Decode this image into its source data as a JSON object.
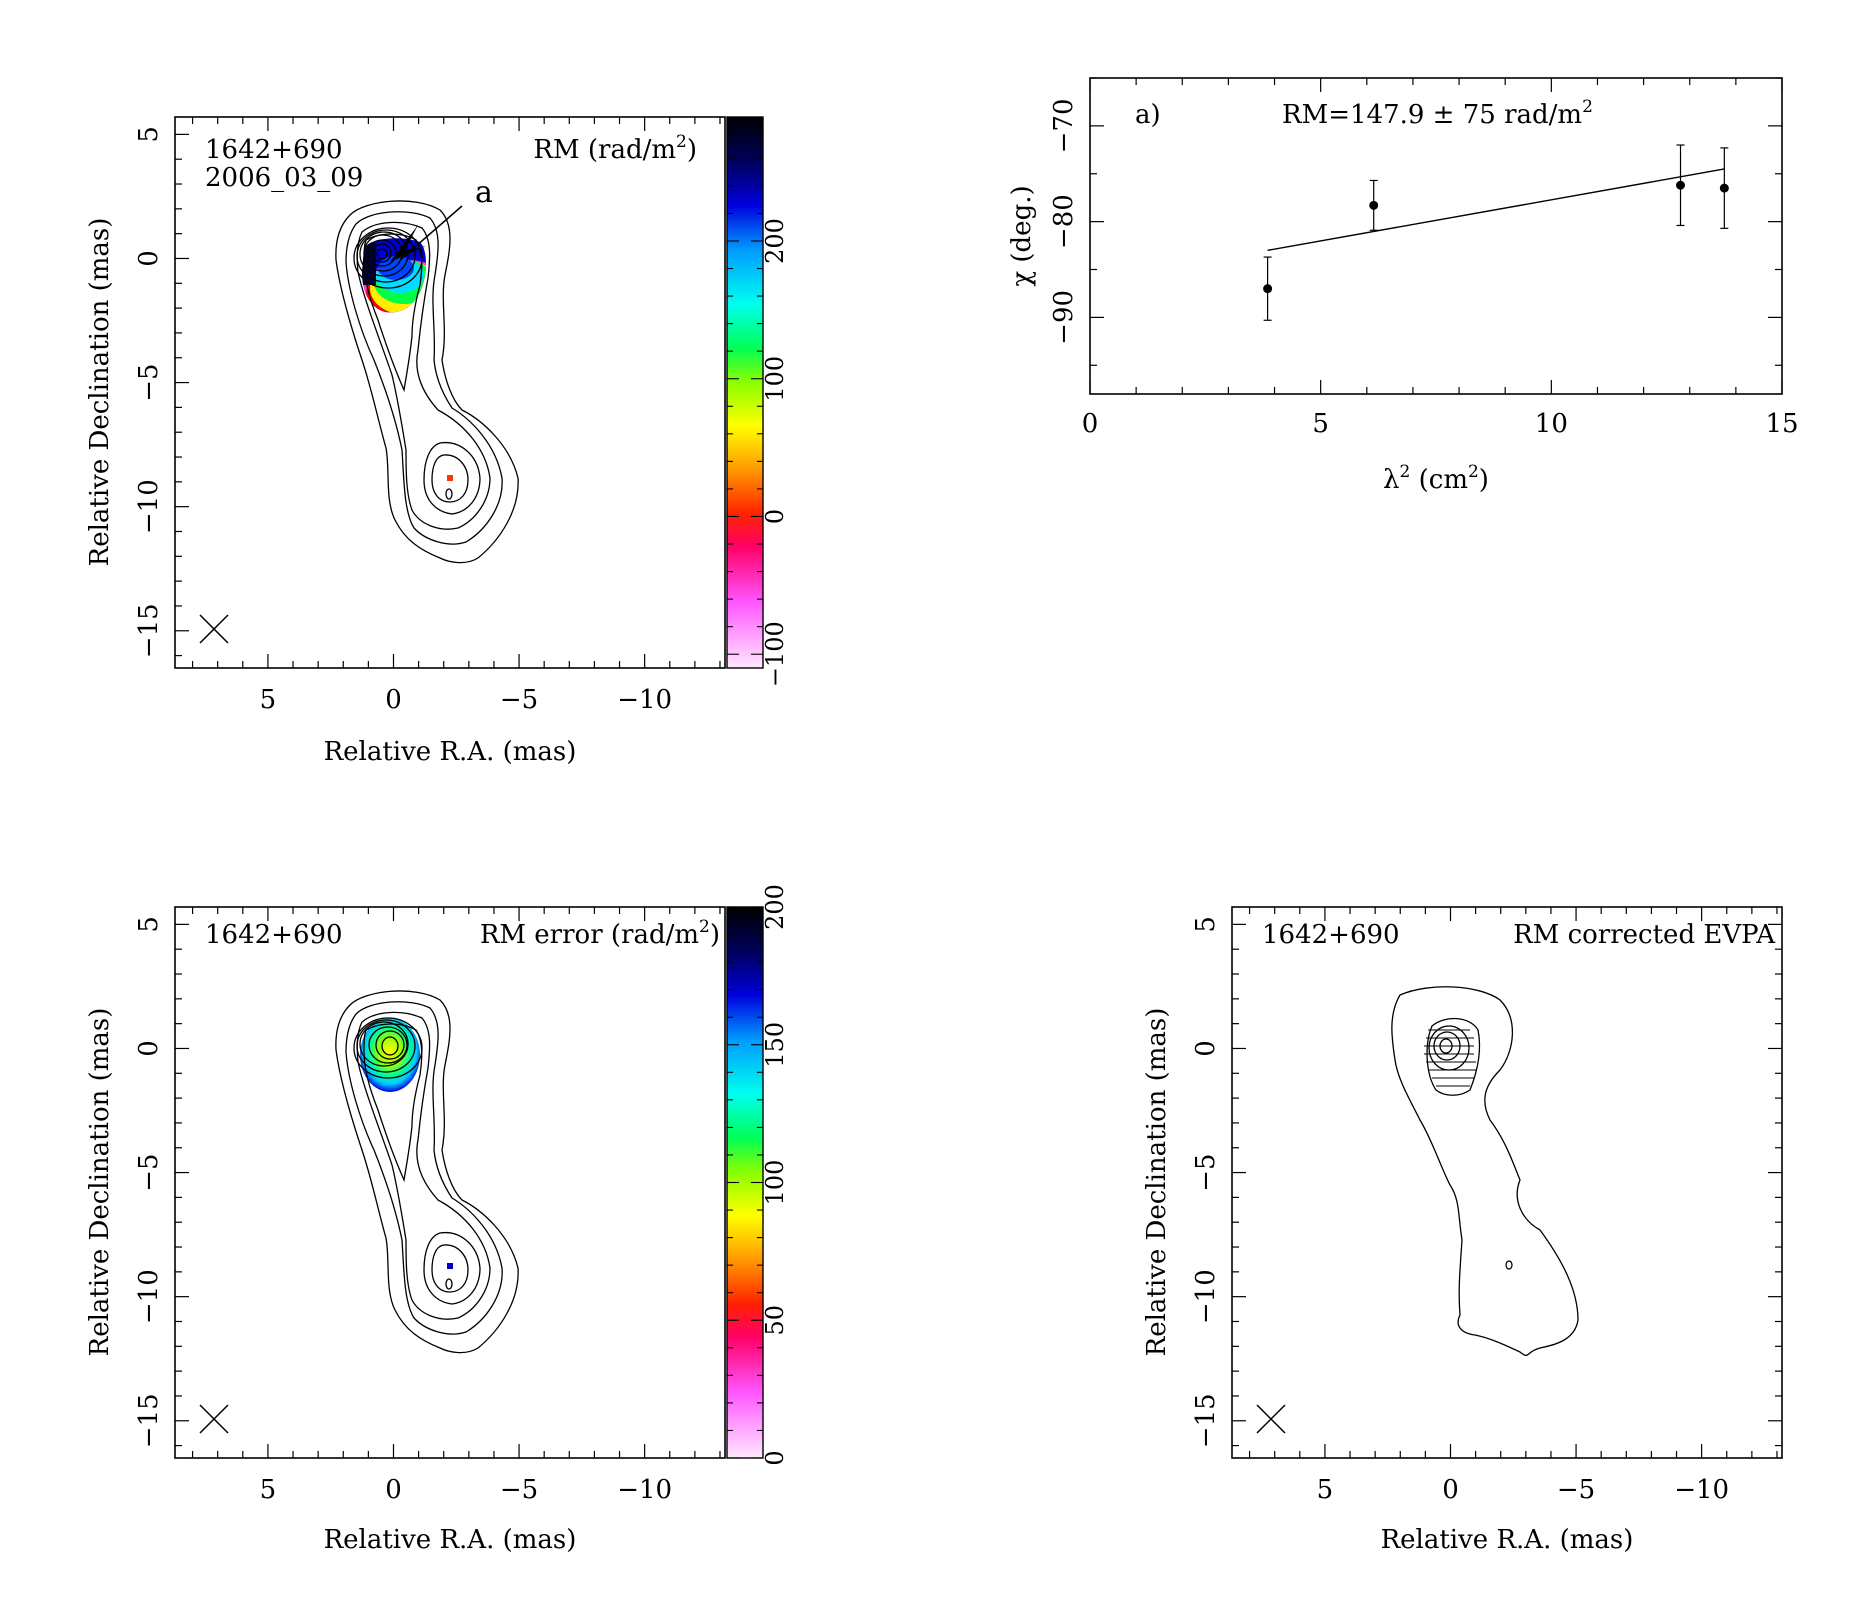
{
  "chart_data": [
    {
      "type": "heatmap",
      "id": "rm-map",
      "source_label": "1642+690",
      "epoch_label": "2006_03_09",
      "map_label": "RM (rad/m",
      "map_label_sup": "2",
      "map_label_close": ")",
      "annotation": "a",
      "xlabel": "Relative R.A. (mas)",
      "ylabel": "Relative Declination (mas)",
      "xlim": [
        8.7,
        -13.2
      ],
      "ylim": [
        -16.5,
        5.7
      ],
      "xticks": [
        5,
        0,
        -5,
        -10
      ],
      "xtick_labels": [
        "5",
        "0",
        "−5",
        "−10"
      ],
      "yticks": [
        5,
        0,
        -5,
        -10,
        -15
      ],
      "ytick_labels": [
        "5",
        "0",
        "−5",
        "−10",
        "−15"
      ],
      "colorbar": {
        "range": [
          -110,
          290
        ],
        "ticks": [
          -100,
          0,
          100,
          200
        ],
        "tick_labels": [
          "−100",
          "0",
          "100",
          "200"
        ]
      },
      "rm_region": {
        "center": [
          0.5,
          -0.6
        ],
        "value_range": [
          -100,
          290
        ]
      }
    },
    {
      "type": "scatter",
      "id": "rm-fit",
      "panel_label": "a)",
      "fit_label": "RM=147.9 ± 75 rad/m",
      "fit_label_sup": "2",
      "xlabel": "λ",
      "xlabel_sup": "2",
      "xlabel_rest": " (cm",
      "xlabel_sup2": "2",
      "xlabel_close": ")",
      "ylabel": "χ (deg.)",
      "xlim": [
        0,
        15
      ],
      "ylim": [
        -98,
        -65
      ],
      "xticks": [
        0,
        5,
        10,
        15
      ],
      "xtick_labels": [
        "0",
        "5",
        "10",
        "15"
      ],
      "yticks": [
        -70,
        -80,
        -90
      ],
      "ytick_labels": [
        "−70",
        "−80",
        "−90"
      ],
      "points": [
        {
          "x": 3.85,
          "y": -87.0,
          "err": 3.3
        },
        {
          "x": 6.15,
          "y": -78.3,
          "err": 2.6
        },
        {
          "x": 12.8,
          "y": -76.2,
          "err": 4.2
        },
        {
          "x": 13.75,
          "y": -76.5,
          "err": 4.2
        }
      ],
      "fit_line": {
        "x": [
          3.85,
          13.75
        ],
        "y": [
          -83.0,
          -74.5
        ]
      }
    },
    {
      "type": "heatmap",
      "id": "rm-error-map",
      "source_label": "1642+690",
      "map_label": "RM error (rad/m",
      "map_label_sup": "2",
      "map_label_close": ")",
      "xlabel": "Relative R.A. (mas)",
      "ylabel": "Relative Declination (mas)",
      "xlim": [
        8.7,
        -13.2
      ],
      "ylim": [
        -16.5,
        5.7
      ],
      "xticks": [
        5,
        0,
        -5,
        -10
      ],
      "xtick_labels": [
        "5",
        "0",
        "−5",
        "−10"
      ],
      "yticks": [
        5,
        0,
        -5,
        -10,
        -15
      ],
      "ytick_labels": [
        "5",
        "0",
        "−5",
        "−10",
        "−15"
      ],
      "colorbar": {
        "range": [
          0,
          200
        ],
        "ticks": [
          0,
          50,
          100,
          150,
          200
        ],
        "tick_labels": [
          "0",
          "50",
          "100",
          "150",
          "200"
        ]
      }
    },
    {
      "type": "heatmap",
      "id": "evpa-map",
      "source_label": "1642+690",
      "map_label": "RM corrected EVPA",
      "xlabel": "Relative R.A. (mas)",
      "ylabel": "Relative Declination (mas)",
      "xlim": [
        8.7,
        -13.2
      ],
      "ylim": [
        -16.5,
        5.7
      ],
      "xticks": [
        5,
        0,
        -5,
        -10
      ],
      "xtick_labels": [
        "5",
        "0",
        "−5",
        "−10"
      ],
      "yticks": [
        5,
        0,
        -5,
        -10,
        -15
      ],
      "ytick_labels": [
        "5",
        "0",
        "−5",
        "−10",
        "−15"
      ]
    }
  ]
}
